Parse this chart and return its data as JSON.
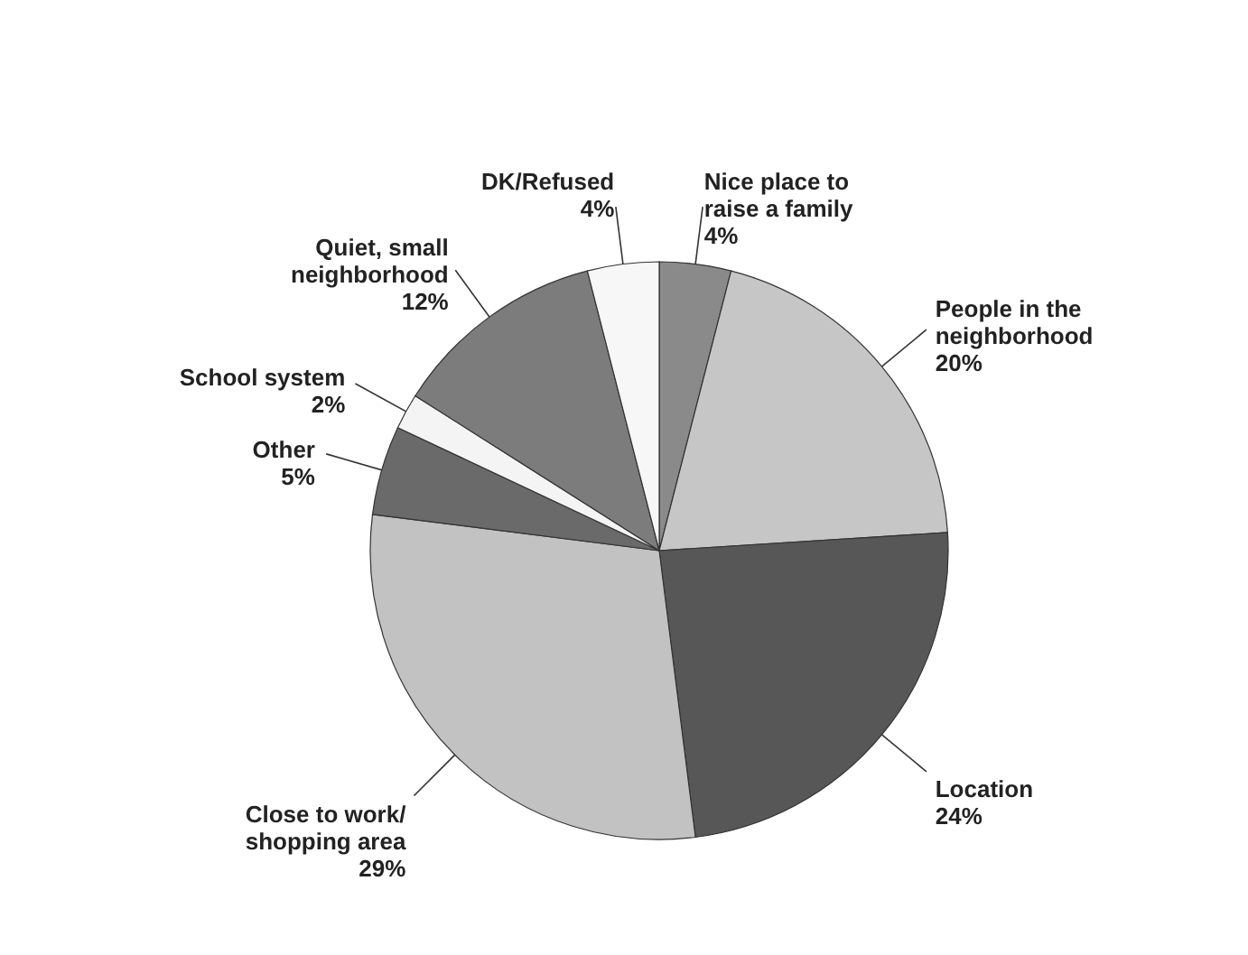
{
  "chart_data": {
    "type": "pie",
    "categories": [
      "Nice place to\nraise a family",
      "People in the\nneighborhood",
      "Location",
      "Close to work/\nshopping area",
      "Other",
      "School system",
      "Quiet, small\nneighborhood",
      "DK/Refused"
    ],
    "values": [
      4,
      20,
      24,
      29,
      5,
      2,
      12,
      4
    ],
    "value_labels": [
      "4%",
      "20%",
      "24%",
      "29%",
      "5%",
      "2%",
      "12%",
      "4%"
    ],
    "colors": [
      "#8a8a8a",
      "#c6c6c6",
      "#575757",
      "#c2c2c2",
      "#6a6a6a",
      "#f4f4f4",
      "#7c7c7c",
      "#f7f7f7"
    ]
  }
}
